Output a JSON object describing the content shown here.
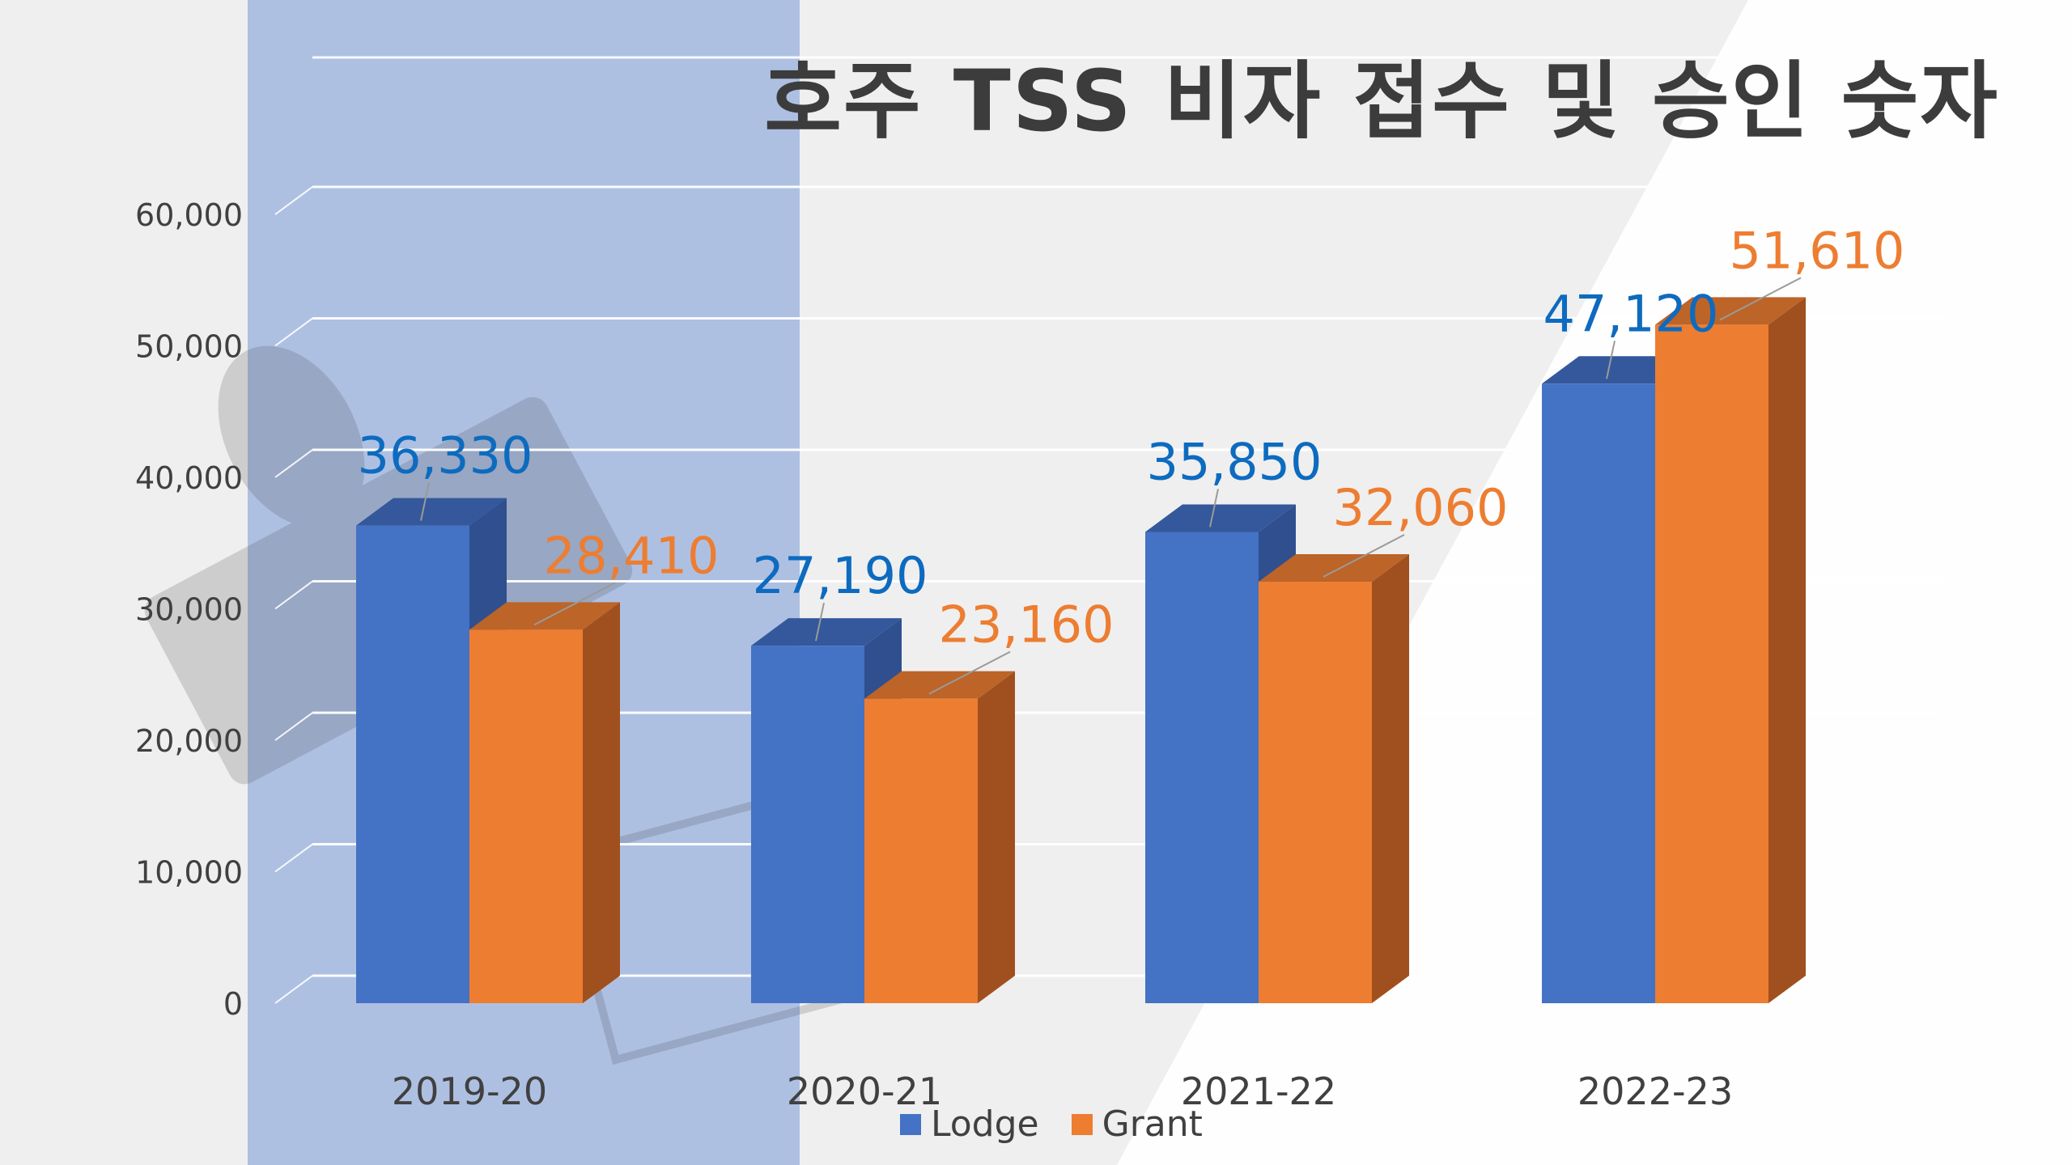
{
  "chart_data": {
    "type": "bar",
    "title": "호주 TSS 비자 접수 및 승인 숫자",
    "categories": [
      "2019-20",
      "2020-21",
      "2021-22",
      "2022-23"
    ],
    "series": [
      {
        "name": "Lodge",
        "values": [
          36330,
          27190,
          35850,
          47120
        ],
        "labels": [
          "36,330",
          "27,190",
          "35,850",
          "47,120"
        ]
      },
      {
        "name": "Grant",
        "values": [
          28410,
          23160,
          32060,
          51610
        ],
        "labels": [
          "28,410",
          "23,160",
          "32,060",
          "51,610"
        ]
      }
    ],
    "y_ticks": [
      "0",
      "10,000",
      "20,000",
      "30,000",
      "40,000",
      "50,000",
      "60,000"
    ],
    "ylim": [
      0,
      60000
    ],
    "xlabel": "",
    "ylabel": "",
    "legend_position": "bottom",
    "grid": true,
    "style": "3d-column",
    "colors": {
      "lodge_front": "#4472c4",
      "lodge_side": "#2f4f8f",
      "lodge_top": "#34589b",
      "lodge_label": "#0d6bbf",
      "grant_front": "#ed7d31",
      "grant_side": "#a0501e",
      "grant_top": "#bd6428",
      "grant_label": "#ed7d31",
      "highlight_band": "#aabde0",
      "gridline": "#ffffff",
      "axis_text": "#404040"
    }
  }
}
